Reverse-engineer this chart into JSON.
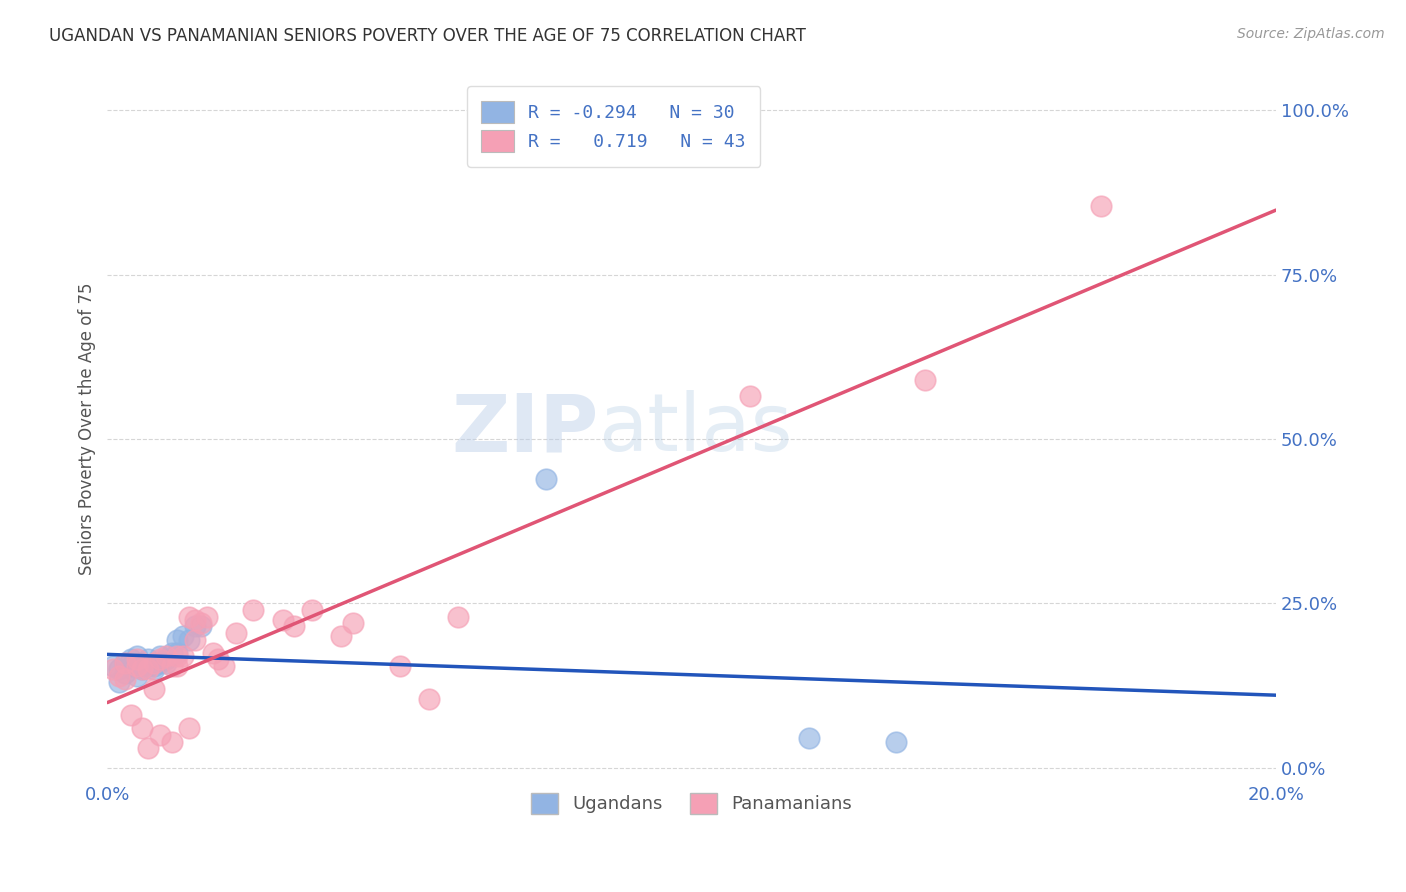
{
  "title": "UGANDAN VS PANAMANIAN SENIORS POVERTY OVER THE AGE OF 75 CORRELATION CHART",
  "source": "Source: ZipAtlas.com",
  "ylabel": "Seniors Poverty Over the Age of 75",
  "xlim": [
    0.0,
    0.2
  ],
  "ylim": [
    -0.02,
    1.05
  ],
  "ytick_vals": [
    0.0,
    0.25,
    0.5,
    0.75,
    1.0
  ],
  "ytick_labels": [
    "0.0%",
    "25.0%",
    "50.0%",
    "75.0%",
    "100.0%"
  ],
  "xtick_vals": [
    0.0,
    0.04,
    0.08,
    0.12,
    0.16,
    0.2
  ],
  "xtick_labels": [
    "0.0%",
    "",
    "",
    "",
    "",
    "20.0%"
  ],
  "ugandan_color": "#92b4e3",
  "panamanian_color": "#f5a0b5",
  "ugandan_line_color": "#2255bb",
  "panamanian_line_color": "#e05575",
  "R_ugandan": -0.294,
  "N_ugandan": 30,
  "R_panamanian": 0.719,
  "N_panamanian": 43,
  "legend_label_ugandan": "Ugandans",
  "legend_label_panamanian": "Panamanians",
  "watermark_zip": "ZIP",
  "watermark_atlas": "atlas",
  "background_color": "#ffffff",
  "grid_color": "#cccccc",
  "title_color": "#333333",
  "axis_label_color": "#4472c4",
  "ugandan_x": [
    0.001,
    0.002,
    0.002,
    0.003,
    0.003,
    0.004,
    0.004,
    0.005,
    0.005,
    0.005,
    0.006,
    0.006,
    0.007,
    0.007,
    0.008,
    0.008,
    0.009,
    0.009,
    0.01,
    0.01,
    0.011,
    0.012,
    0.012,
    0.013,
    0.014,
    0.015,
    0.016,
    0.075,
    0.12,
    0.135
  ],
  "ugandan_y": [
    0.155,
    0.13,
    0.15,
    0.145,
    0.16,
    0.165,
    0.155,
    0.14,
    0.155,
    0.17,
    0.15,
    0.16,
    0.155,
    0.165,
    0.15,
    0.155,
    0.16,
    0.17,
    0.16,
    0.165,
    0.175,
    0.175,
    0.195,
    0.2,
    0.195,
    0.215,
    0.215,
    0.44,
    0.045,
    0.04
  ],
  "panamanian_x": [
    0.001,
    0.002,
    0.003,
    0.003,
    0.004,
    0.005,
    0.005,
    0.006,
    0.006,
    0.007,
    0.007,
    0.008,
    0.008,
    0.009,
    0.009,
    0.01,
    0.011,
    0.011,
    0.012,
    0.012,
    0.013,
    0.014,
    0.014,
    0.015,
    0.015,
    0.016,
    0.017,
    0.018,
    0.019,
    0.02,
    0.022,
    0.025,
    0.03,
    0.032,
    0.035,
    0.04,
    0.042,
    0.05,
    0.055,
    0.06,
    0.11,
    0.14,
    0.17
  ],
  "panamanian_y": [
    0.15,
    0.14,
    0.135,
    0.16,
    0.08,
    0.155,
    0.165,
    0.06,
    0.15,
    0.15,
    0.03,
    0.16,
    0.12,
    0.165,
    0.05,
    0.17,
    0.04,
    0.155,
    0.155,
    0.17,
    0.17,
    0.06,
    0.23,
    0.195,
    0.225,
    0.22,
    0.23,
    0.175,
    0.165,
    0.155,
    0.205,
    0.24,
    0.225,
    0.215,
    0.24,
    0.2,
    0.22,
    0.155,
    0.105,
    0.23,
    0.565,
    0.59,
    0.855
  ]
}
